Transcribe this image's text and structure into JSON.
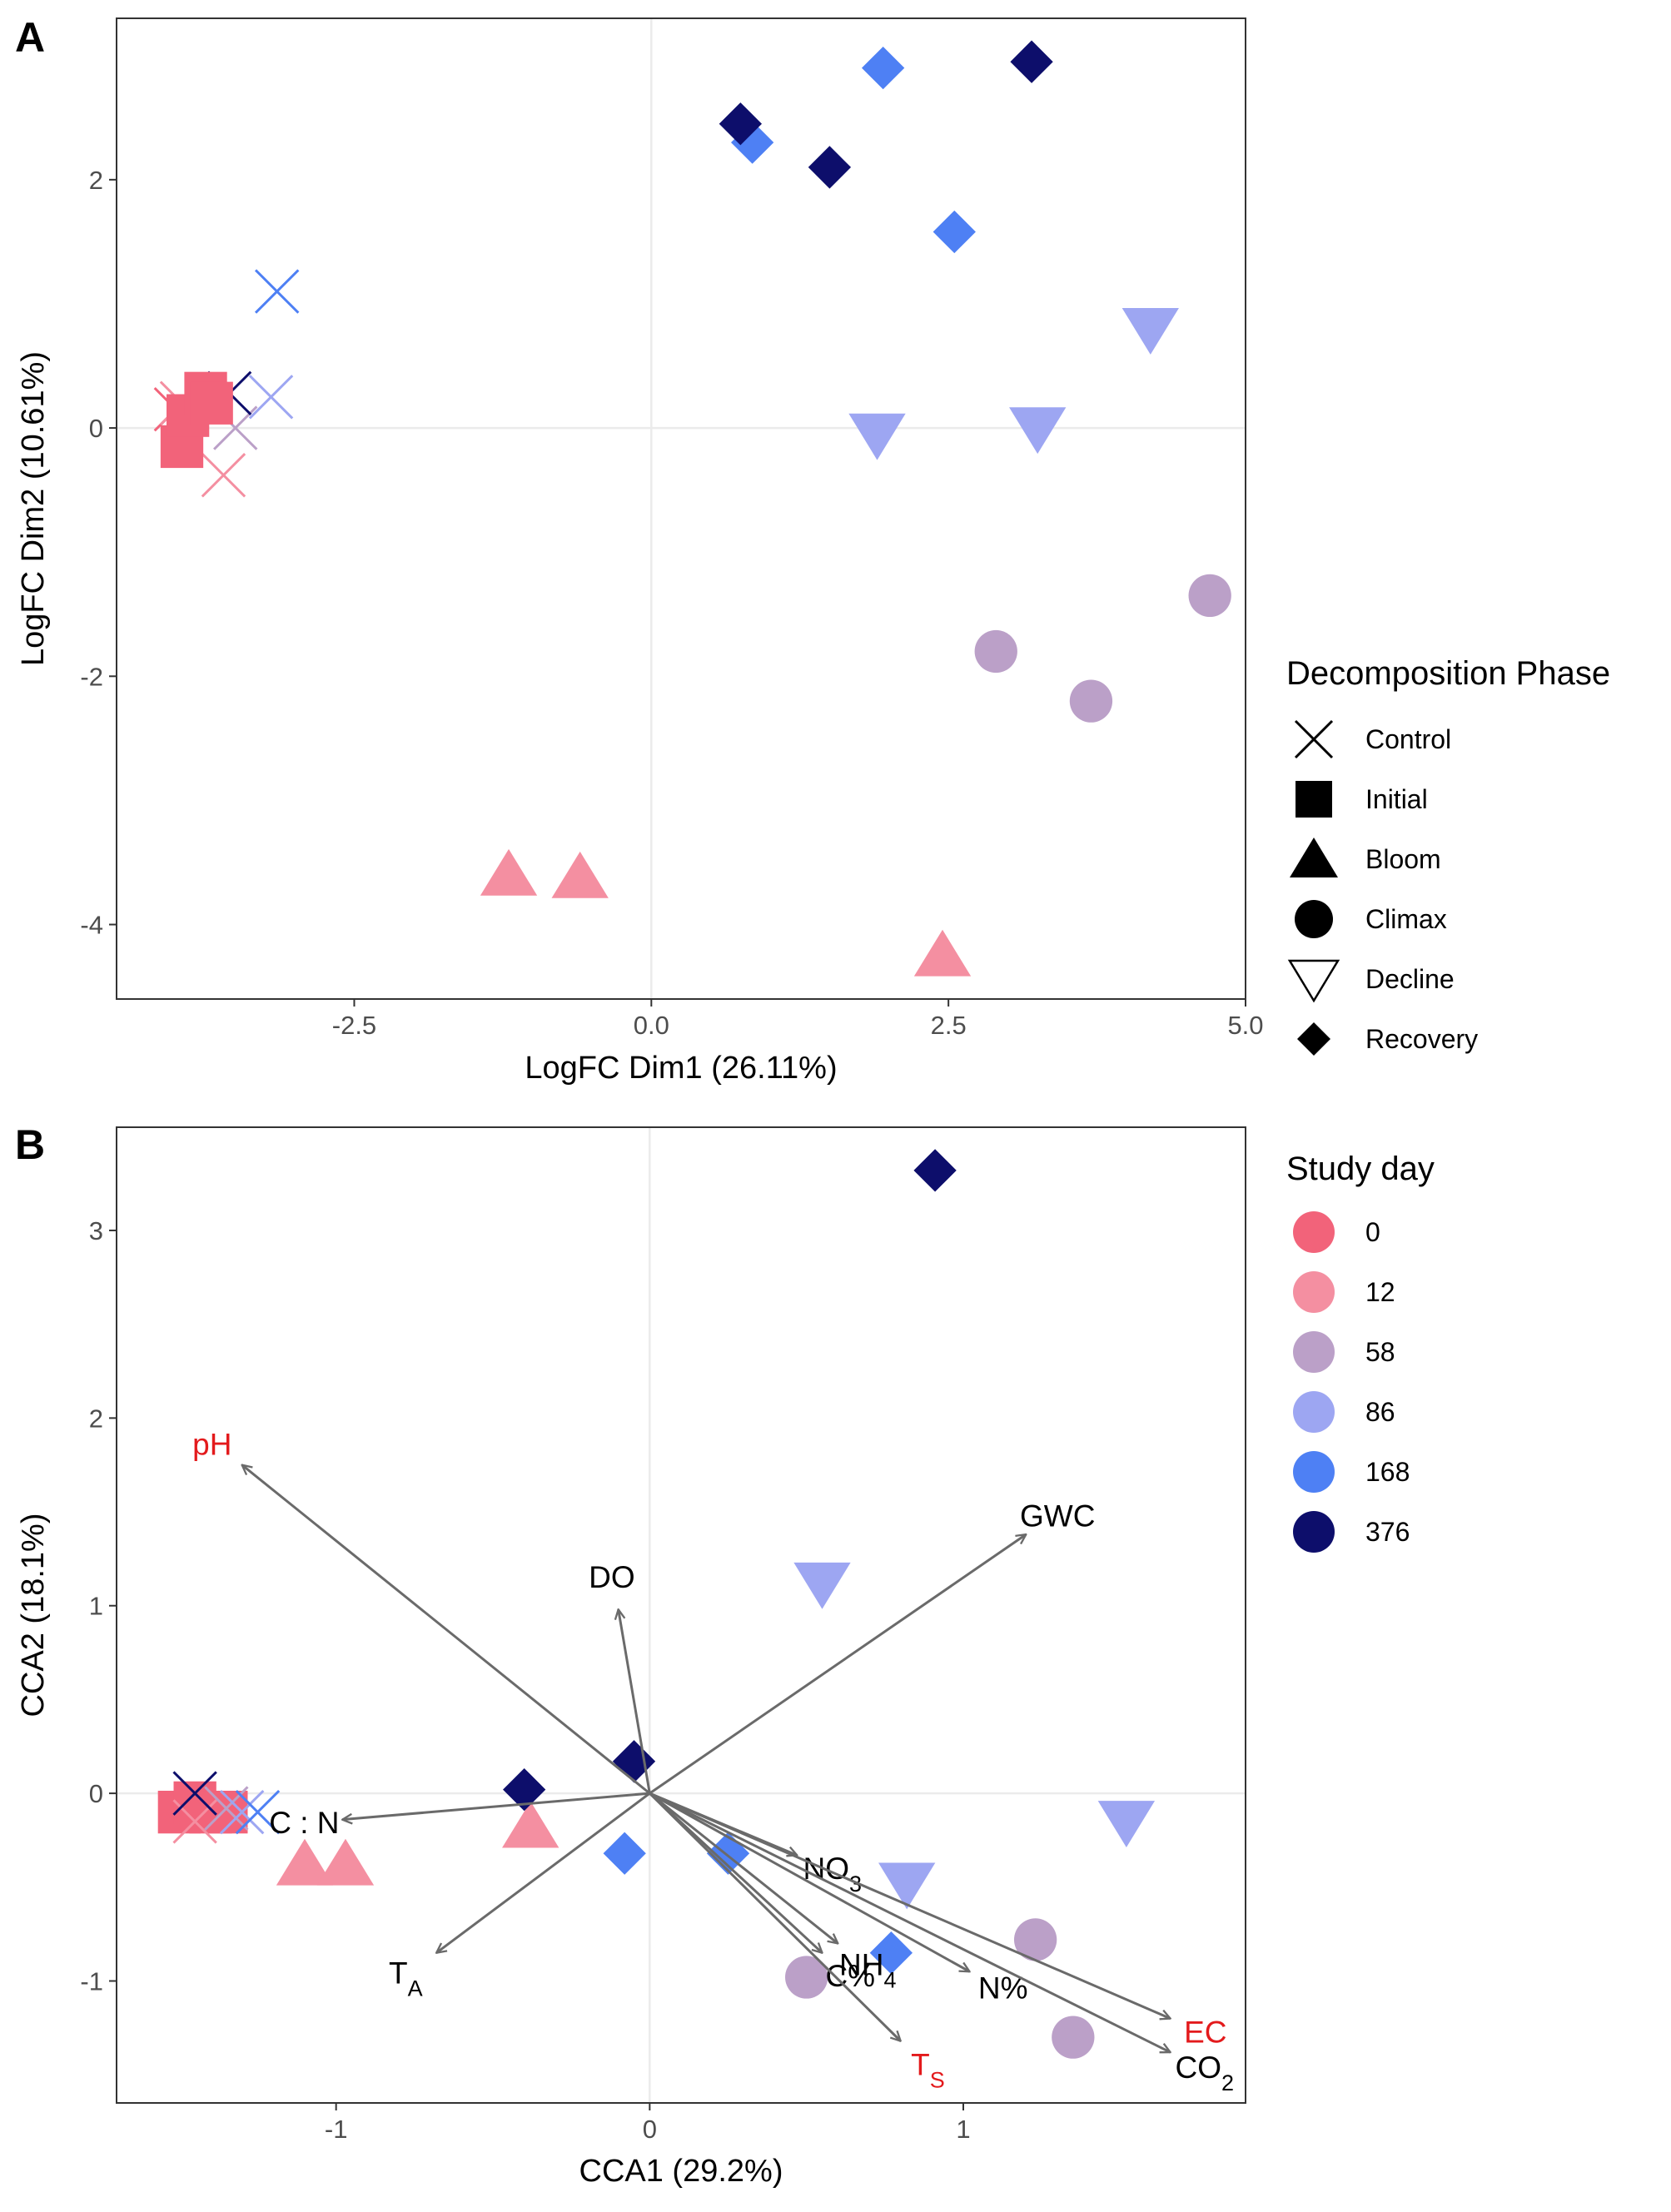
{
  "colors": {
    "0": "#F2637A",
    "12": "#F48FA1",
    "58": "#BBA0C8",
    "86": "#9DA6F2",
    "168": "#4E80F4",
    "376": "#0D0E6B",
    "vector": "#6A6A6A",
    "red_label": "#E31A1C"
  },
  "panel_a": {
    "tag": "A",
    "xlabel": "LogFC Dim1 (26.11%)",
    "ylabel": "LogFC Dim2 (10.61%)",
    "xticks": [
      -2.5,
      0.0,
      2.5,
      5.0
    ],
    "xtick_labels": [
      "-2.5",
      "0.0",
      "2.5",
      "5.0"
    ],
    "yticks": [
      -4,
      -2,
      0,
      2
    ],
    "ytick_labels": [
      "-4",
      "-2",
      "0",
      "2"
    ]
  },
  "panel_b": {
    "tag": "B",
    "xlabel": "CCA1 (29.2%)",
    "ylabel": "CCA2 (18.1%)",
    "xticks": [
      -1,
      0,
      1
    ],
    "xtick_labels": [
      "-1",
      "0",
      "1"
    ],
    "yticks": [
      -1,
      0,
      1,
      2,
      3
    ],
    "ytick_labels": [
      "-1",
      "0",
      "1",
      "2",
      "3"
    ]
  },
  "legend_phase": {
    "title": "Decomposition Phase",
    "items": [
      {
        "label": "Control",
        "shape": "cross"
      },
      {
        "label": "Initial",
        "shape": "square"
      },
      {
        "label": "Bloom",
        "shape": "triangle"
      },
      {
        "label": "Climax",
        "shape": "circle"
      },
      {
        "label": "Decline",
        "shape": "triangle-down-open"
      },
      {
        "label": "Recovery",
        "shape": "diamond"
      }
    ]
  },
  "legend_day": {
    "title": "Study day",
    "items": [
      {
        "label": "0",
        "day": "0"
      },
      {
        "label": "12",
        "day": "12"
      },
      {
        "label": "58",
        "day": "58"
      },
      {
        "label": "86",
        "day": "86"
      },
      {
        "label": "168",
        "day": "168"
      },
      {
        "label": "376",
        "day": "376"
      }
    ]
  },
  "chart_data": [
    {
      "type": "scatter",
      "xlabel": "LogFC Dim1 (26.11%)",
      "ylabel": "LogFC Dim2 (10.61%)",
      "xlim": [
        -4.5,
        5.0
      ],
      "ylim": [
        -4.6,
        3.3
      ],
      "reference_lines": {
        "x": 0,
        "y": 0
      },
      "points": [
        {
          "x": -4.0,
          "y": 0.15,
          "shape": "cross",
          "day": "0"
        },
        {
          "x": -3.95,
          "y": 0.2,
          "shape": "cross",
          "day": "12"
        },
        {
          "x": -3.6,
          "y": -0.38,
          "shape": "cross",
          "day": "12"
        },
        {
          "x": -3.5,
          "y": 0.0,
          "shape": "cross",
          "day": "58"
        },
        {
          "x": -3.2,
          "y": 0.25,
          "shape": "cross",
          "day": "86"
        },
        {
          "x": -3.15,
          "y": 1.1,
          "shape": "cross",
          "day": "168"
        },
        {
          "x": -3.55,
          "y": 0.28,
          "shape": "cross",
          "day": "376"
        },
        {
          "x": -3.95,
          "y": -0.15,
          "shape": "square",
          "day": "0"
        },
        {
          "x": -3.9,
          "y": 0.1,
          "shape": "square",
          "day": "0"
        },
        {
          "x": -3.75,
          "y": 0.28,
          "shape": "square",
          "day": "0"
        },
        {
          "x": -3.7,
          "y": 0.2,
          "shape": "square",
          "day": "0"
        },
        {
          "x": -1.2,
          "y": -3.6,
          "shape": "triangle",
          "day": "12"
        },
        {
          "x": -0.6,
          "y": -3.62,
          "shape": "triangle",
          "day": "12"
        },
        {
          "x": 2.45,
          "y": -4.25,
          "shape": "triangle",
          "day": "12"
        },
        {
          "x": 2.9,
          "y": -1.8,
          "shape": "circle",
          "day": "58"
        },
        {
          "x": 3.7,
          "y": -2.2,
          "shape": "circle",
          "day": "58"
        },
        {
          "x": 4.7,
          "y": -1.35,
          "shape": "circle",
          "day": "58"
        },
        {
          "x": 1.9,
          "y": -0.05,
          "shape": "triangle-down-open",
          "day": "86"
        },
        {
          "x": 3.25,
          "y": 0.0,
          "shape": "triangle-down-open",
          "day": "86"
        },
        {
          "x": 4.2,
          "y": 0.8,
          "shape": "triangle-down-open",
          "day": "86"
        },
        {
          "x": 0.85,
          "y": 2.3,
          "shape": "diamond",
          "day": "168"
        },
        {
          "x": 1.95,
          "y": 2.9,
          "shape": "diamond",
          "day": "168"
        },
        {
          "x": 2.55,
          "y": 1.58,
          "shape": "diamond",
          "day": "168"
        },
        {
          "x": 0.75,
          "y": 2.45,
          "shape": "diamond",
          "day": "376"
        },
        {
          "x": 1.5,
          "y": 2.1,
          "shape": "diamond",
          "day": "376"
        },
        {
          "x": 3.2,
          "y": 2.95,
          "shape": "diamond",
          "day": "376"
        }
      ]
    },
    {
      "type": "scatter",
      "xlabel": "CCA1 (29.2%)",
      "ylabel": "CCA2 (18.1%)",
      "xlim": [
        -1.7,
        1.9
      ],
      "ylim": [
        -1.65,
        3.55
      ],
      "reference_lines": {
        "x": 0,
        "y": 0
      },
      "points": [
        {
          "x": -1.5,
          "y": -0.1,
          "shape": "square",
          "day": "0"
        },
        {
          "x": -1.45,
          "y": -0.05,
          "shape": "square",
          "day": "0"
        },
        {
          "x": -1.4,
          "y": -0.1,
          "shape": "square",
          "day": "0"
        },
        {
          "x": -1.35,
          "y": -0.1,
          "shape": "square",
          "day": "0"
        },
        {
          "x": -1.45,
          "y": -0.15,
          "shape": "cross",
          "day": "12"
        },
        {
          "x": -1.35,
          "y": -0.08,
          "shape": "cross",
          "day": "58"
        },
        {
          "x": -1.3,
          "y": -0.1,
          "shape": "cross",
          "day": "86"
        },
        {
          "x": -1.25,
          "y": -0.1,
          "shape": "cross",
          "day": "168"
        },
        {
          "x": -1.45,
          "y": 0.0,
          "shape": "cross",
          "day": "376"
        },
        {
          "x": -1.1,
          "y": -0.38,
          "shape": "triangle",
          "day": "12"
        },
        {
          "x": -0.97,
          "y": -0.38,
          "shape": "triangle",
          "day": "12"
        },
        {
          "x": -0.38,
          "y": -0.18,
          "shape": "triangle",
          "day": "12"
        },
        {
          "x": 0.5,
          "y": -0.98,
          "shape": "circle",
          "day": "58"
        },
        {
          "x": 1.23,
          "y": -0.78,
          "shape": "circle",
          "day": "58"
        },
        {
          "x": 1.35,
          "y": -1.3,
          "shape": "circle",
          "day": "58"
        },
        {
          "x": 0.55,
          "y": 1.12,
          "shape": "triangle-down-open",
          "day": "86"
        },
        {
          "x": 0.82,
          "y": -0.48,
          "shape": "triangle-down-open",
          "day": "86"
        },
        {
          "x": 1.52,
          "y": -0.15,
          "shape": "triangle-down-open",
          "day": "86"
        },
        {
          "x": -0.08,
          "y": -0.32,
          "shape": "diamond",
          "day": "168"
        },
        {
          "x": 0.25,
          "y": -0.32,
          "shape": "diamond",
          "day": "168"
        },
        {
          "x": 0.77,
          "y": -0.85,
          "shape": "diamond",
          "day": "168"
        },
        {
          "x": -0.4,
          "y": 0.02,
          "shape": "diamond",
          "day": "376"
        },
        {
          "x": -0.05,
          "y": 0.17,
          "shape": "diamond",
          "day": "376"
        },
        {
          "x": 0.91,
          "y": 3.32,
          "shape": "diamond",
          "day": "376"
        }
      ],
      "vectors": [
        {
          "name": "pH",
          "x": -1.3,
          "y": 1.75,
          "label_red": true
        },
        {
          "name": "GWC",
          "x": 1.2,
          "y": 1.38,
          "label_red": false
        },
        {
          "name": "DO",
          "x": -0.1,
          "y": 0.98,
          "label_red": false
        },
        {
          "name": "C : N",
          "x": -0.98,
          "y": -0.14,
          "label_red": false
        },
        {
          "name": "T",
          "sub": "A",
          "x": -0.68,
          "y": -0.85,
          "label_red": false
        },
        {
          "name": "NO",
          "sub": "3",
          "x": 0.47,
          "y": -0.33,
          "label_red": false
        },
        {
          "name": "NH",
          "sub": "4",
          "x": 0.6,
          "y": -0.8,
          "label_red": false
        },
        {
          "name": "C%",
          "x": 0.55,
          "y": -0.85,
          "label_red": false
        },
        {
          "name": "N%",
          "x": 1.02,
          "y": -0.95,
          "label_red": false
        },
        {
          "name": "T",
          "sub": "S",
          "x": 0.8,
          "y": -1.32,
          "label_red": true
        },
        {
          "name": "EC",
          "x": 1.66,
          "y": -1.2,
          "label_red": true
        },
        {
          "name": "CO",
          "sub": "2",
          "x": 1.66,
          "y": -1.38,
          "label_red": false
        }
      ]
    }
  ]
}
